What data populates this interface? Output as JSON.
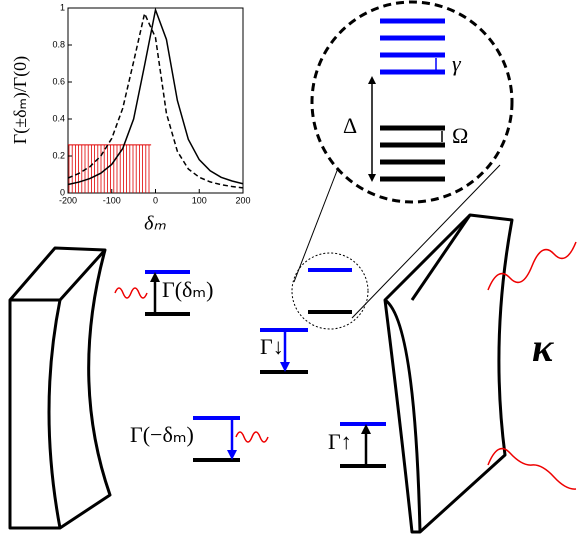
{
  "chart_data": {
    "type": "line",
    "ylabel": "Γ(±δₘ)/Γ(0)",
    "xlabel": "δₘ",
    "x": [
      -200,
      -175,
      -150,
      -125,
      -100,
      -75,
      -50,
      -25,
      0,
      25,
      50,
      75,
      100,
      125,
      150,
      175,
      200
    ],
    "series": [
      {
        "color": "#000000",
        "dash": false,
        "values": [
          0.046,
          0.059,
          0.078,
          0.107,
          0.155,
          0.24,
          0.4,
          0.69,
          0.99,
          0.83,
          0.5,
          0.29,
          0.18,
          0.12,
          0.085,
          0.065,
          0.05
        ]
      },
      {
        "color": "#000000",
        "dash": true,
        "values": [
          0.081,
          0.106,
          0.142,
          0.2,
          0.295,
          0.457,
          0.71,
          0.97,
          0.84,
          0.43,
          0.225,
          0.13,
          0.085,
          0.06,
          0.045,
          0.035,
          0.028
        ]
      }
    ],
    "shaded": {
      "xlim": [
        -200,
        -10
      ],
      "height": 0.26,
      "color": "#e00000"
    },
    "xlim": [
      -200,
      200
    ],
    "ylim": [
      0,
      1
    ],
    "xticks": [
      -200,
      -100,
      0,
      100,
      200
    ],
    "yticks": [
      0,
      0.2,
      0.4,
      0.6,
      0.8,
      1
    ]
  },
  "diagram": {
    "labels": {
      "gamma_up_plus": "Γ(δₘ)",
      "gamma_minus": "Γ(−δₘ)",
      "gamma_down": "Γ↓",
      "gamma_up": "Γ↑",
      "kappa": "κ",
      "small_gamma": "γ",
      "delta": "Δ",
      "omega": "Ω"
    }
  }
}
